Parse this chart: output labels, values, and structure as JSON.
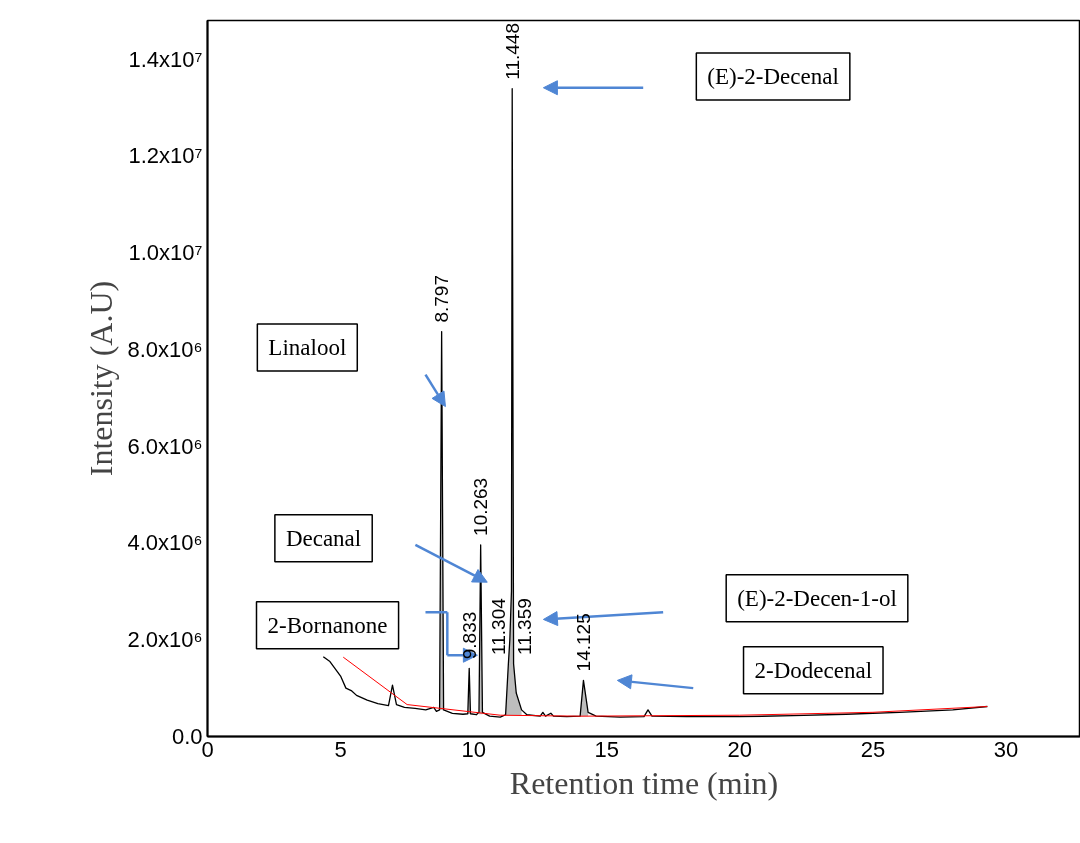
{
  "chart_data": {
    "type": "line",
    "xlabel": "Retention time (min)",
    "ylabel": "Intensity (A.U)",
    "xlim": [
      0,
      32.8
    ],
    "ylim": [
      0,
      14800000
    ],
    "xticks": [
      0,
      5,
      10,
      15,
      20,
      25,
      30
    ],
    "yticks": [
      {
        "value": 0,
        "label": "0.0"
      },
      {
        "value": 2000000,
        "label": "2.0x10⁶"
      },
      {
        "value": 4000000,
        "label": "4.0x10⁶"
      },
      {
        "value": 6000000,
        "label": "6.0x10⁶"
      },
      {
        "value": 8000000,
        "label": "8.0x10⁶"
      },
      {
        "value": 10000000,
        "label": "1.0x10⁷"
      },
      {
        "value": 12000000,
        "label": "1.2x10⁷"
      },
      {
        "value": 14000000,
        "label": "1.4x10⁷"
      }
    ],
    "grid": false,
    "marker": "none",
    "line_style": "solid",
    "series": [
      {
        "color": "#000000",
        "x": [
          4.35,
          4.6,
          5.0,
          5.2,
          5.4,
          5.6,
          6.0,
          6.4,
          6.8,
          6.95,
          7.1,
          7.4,
          7.8,
          8.2,
          8.5,
          8.6,
          8.72,
          8.797,
          8.87,
          9.2,
          9.6,
          9.78,
          9.833,
          9.88,
          10.1,
          10.2,
          10.263,
          10.33,
          10.6,
          11.0,
          11.2,
          11.304,
          11.359,
          11.42,
          11.448,
          11.5,
          11.6,
          11.8,
          12.0,
          12.5,
          12.6,
          12.7,
          12.9,
          13.0,
          13.5,
          14.0,
          14.125,
          14.3,
          14.6,
          15.5,
          16.4,
          16.55,
          16.7,
          18,
          20,
          22,
          24,
          26,
          28,
          29.3
        ],
        "values": [
          1650000,
          1550000,
          1250000,
          1000000,
          950000,
          850000,
          750000,
          680000,
          640000,
          1060000,
          660000,
          600000,
          580000,
          550000,
          600000,
          520000,
          550000,
          8370000,
          550000,
          480000,
          460000,
          470000,
          1410000,
          470000,
          450000,
          500000,
          3960000,
          500000,
          420000,
          400000,
          450000,
          1500000,
          2000000,
          3000000,
          13390000,
          1500000,
          900000,
          550000,
          450000,
          420000,
          500000,
          420000,
          480000,
          420000,
          410000,
          420000,
          1160000,
          500000,
          420000,
          400000,
          410000,
          550000,
          420000,
          410000,
          410000,
          430000,
          460000,
          500000,
          550000,
          620000
        ],
        "lower": [
          null,
          null,
          null,
          null,
          null,
          null,
          null,
          null,
          null,
          null,
          null,
          null,
          null,
          null,
          null,
          null,
          560000,
          550000,
          540000,
          null,
          null,
          470000,
          470000,
          470000,
          null,
          460000,
          460000,
          460000,
          null,
          null,
          440000,
          440000,
          440000,
          440000,
          440000,
          440000,
          440000,
          440000,
          null,
          null,
          null,
          null,
          null,
          null,
          null,
          420000,
          420000,
          420000,
          null,
          null,
          null,
          null,
          null,
          null,
          null,
          null,
          null,
          null,
          null,
          null
        ],
        "upper": [
          null,
          null,
          null,
          null,
          null,
          null,
          null,
          null,
          null,
          null,
          null,
          null,
          null,
          null,
          null,
          null,
          560000,
          8370000,
          550000,
          null,
          null,
          470000,
          1410000,
          470000,
          null,
          500000,
          3960000,
          500000,
          null,
          null,
          450000,
          1500000,
          2000000,
          3000000,
          13390000,
          1500000,
          900000,
          550000,
          null,
          null,
          null,
          null,
          null,
          null,
          null,
          420000,
          1160000,
          500000,
          null,
          null,
          null,
          null,
          null,
          null,
          null,
          null,
          null,
          null,
          null,
          null
        ]
      },
      {
        "color": "#ff0000",
        "x": [
          5.1,
          7.5,
          11.0,
          14.0,
          20.0,
          25.0,
          29.3
        ],
        "values": [
          1640000,
          660000,
          440000,
          420000,
          440000,
          500000,
          620000
        ]
      }
    ],
    "annotations": [
      "(E)-2-Decenal",
      "Linalool",
      "Decanal",
      "2-Bornanone",
      "(E)-2-Decen-1-ol",
      "2-Dodecenal",
      {
        "text": "11.448",
        "x": 11.448,
        "y": 13390000
      },
      {
        "text": "8.797",
        "x": 8.797,
        "y": 8370000
      },
      {
        "text": "10.263",
        "x": 10.263,
        "y": 3960000
      },
      {
        "text": "9.833",
        "x": 9.833,
        "y": 1410000
      },
      {
        "text": "11.304",
        "x": 11.304,
        "y": 1500000
      },
      {
        "text": "11.359",
        "x": 11.359,
        "y": 1500000
      },
      {
        "text": "14.125",
        "x": 14.125,
        "y": 1160000
      }
    ]
  }
}
